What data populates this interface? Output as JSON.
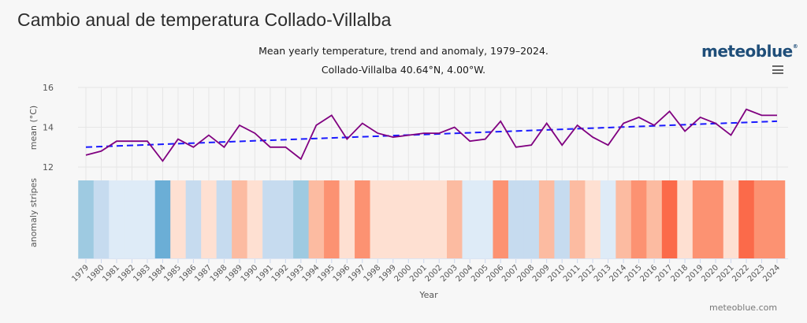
{
  "page": {
    "title": "Cambio anual de temperatura Collado-Villalba",
    "logo": "meteoblue",
    "logo_mark": "®",
    "credit": "meteoblue.com",
    "menu_icon": "hamburger-menu-icon"
  },
  "chart_data": {
    "type": "line",
    "title": "Mean yearly temperature, trend and anomaly, 1979–2024.",
    "subtitle": "Collado-Villalba 40.64°N, 4.00°W.",
    "xlabel": "Year",
    "ylabel": "mean (°C)",
    "ylabel_stripes": "anomaly stripes",
    "ylim": [
      12,
      16
    ],
    "yticks": [
      12,
      14,
      16
    ],
    "grid": true,
    "x": [
      1979,
      1980,
      1981,
      1982,
      1983,
      1984,
      1985,
      1986,
      1987,
      1988,
      1989,
      1990,
      1991,
      1992,
      1993,
      1994,
      1995,
      1996,
      1997,
      1998,
      1999,
      2000,
      2001,
      2002,
      2003,
      2004,
      2005,
      2006,
      2007,
      2008,
      2009,
      2010,
      2011,
      2012,
      2013,
      2014,
      2015,
      2016,
      2017,
      2018,
      2019,
      2020,
      2021,
      2022,
      2023,
      2024
    ],
    "series": [
      {
        "name": "Mean temperature",
        "color": "#800080",
        "values": [
          12.6,
          12.8,
          13.3,
          13.3,
          13.3,
          12.3,
          13.4,
          13.0,
          13.6,
          13.0,
          14.1,
          13.7,
          13.0,
          13.0,
          12.4,
          14.1,
          14.6,
          13.4,
          14.2,
          13.7,
          13.5,
          13.6,
          13.7,
          13.7,
          14.0,
          13.3,
          13.4,
          14.3,
          13.0,
          13.1,
          14.2,
          13.1,
          14.1,
          13.5,
          13.1,
          14.2,
          14.5,
          14.1,
          14.8,
          13.8,
          14.5,
          14.2,
          13.6,
          14.9,
          14.6,
          14.6
        ]
      },
      {
        "name": "Trend",
        "color": "#1a1aff",
        "style": "dashed",
        "values_endpoints": {
          "1979": 13.0,
          "2024": 14.3
        }
      }
    ],
    "anomaly_stripes": {
      "colors": [
        "#9ecae1",
        "#c6dbef",
        "#deebf7",
        "#deebf7",
        "#deebf7",
        "#6baed6",
        "#fee0d2",
        "#c6dbef",
        "#fee0d2",
        "#c6dbef",
        "#fcbba1",
        "#fee0d2",
        "#c6dbef",
        "#c6dbef",
        "#9ecae1",
        "#fcbba1",
        "#fc9272",
        "#fee0d2",
        "#fc9272",
        "#fee0d2",
        "#fee0d2",
        "#fee0d2",
        "#fee0d2",
        "#fee0d2",
        "#fcbba1",
        "#deebf7",
        "#deebf7",
        "#fc9272",
        "#c6dbef",
        "#c6dbef",
        "#fcbba1",
        "#c6dbef",
        "#fcbba1",
        "#fee0d2",
        "#deebf7",
        "#fcbba1",
        "#fc9272",
        "#fcbba1",
        "#fb6a4a",
        "#fee0d2",
        "#fc9272",
        "#fc9272",
        "#fee0d2",
        "#fb6a4a",
        "#fc9272",
        "#fc9272"
      ]
    }
  }
}
